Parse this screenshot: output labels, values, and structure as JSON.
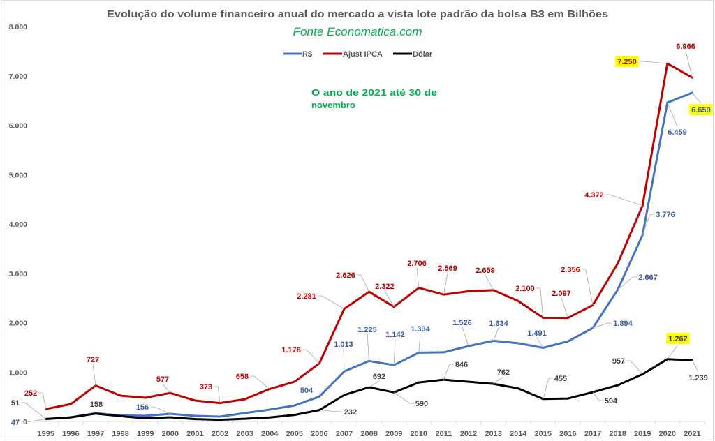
{
  "chart_data": {
    "type": "line",
    "title": "Evolução do volume financeiro anual do mercado a vista lote padrão da bolsa B3 em Bilhões",
    "subtitle": "Fonte Economatica.com",
    "annotation": [
      "O ano de 2021 até 30 de",
      "novembro"
    ],
    "xlabel": "",
    "ylabel": "",
    "categories": [
      "1995",
      "1996",
      "1997",
      "1998",
      "1999",
      "2000",
      "2001",
      "2002",
      "2003",
      "2004",
      "2005",
      "2006",
      "2007",
      "2008",
      "2009",
      "2010",
      "2011",
      "2012",
      "2013",
      "2014",
      "2015",
      "2016",
      "2017",
      "2018",
      "2019",
      "2020",
      "2021"
    ],
    "ylim": [
      0,
      8000
    ],
    "yticks": [
      0,
      1000,
      2000,
      3000,
      4000,
      5000,
      6000,
      7000,
      8000
    ],
    "ytick_labels": [
      "0",
      "1.000",
      "2.000",
      "3.000",
      "4.000",
      "5.000",
      "6.000",
      "7.000",
      "8.000"
    ],
    "grid": false,
    "legend": {
      "position": "top-center",
      "entries": [
        "R$",
        "Ajust IPCA",
        "Dólar"
      ]
    },
    "highlight_color": "#FFFF00",
    "series": [
      {
        "name": "R$",
        "color": "#4472C4",
        "label_color": "#3A5BA0",
        "values": [
          47,
          85,
          168,
          125,
          115,
          156,
          113,
          99,
          169,
          240,
          324,
          504,
          1013,
          1225,
          1142,
          1394,
          1400,
          1526,
          1634,
          1585,
          1491,
          1622,
          1894,
          2667,
          3776,
          6459,
          6659
        ],
        "data_labels": [
          "47",
          null,
          null,
          null,
          null,
          "156",
          null,
          null,
          null,
          null,
          null,
          "504",
          "1.013",
          "1.225",
          "1.142",
          "1.394",
          null,
          "1.526",
          "1.634",
          null,
          "1.491",
          null,
          "1.894",
          "2.667",
          "3.776",
          "6.459",
          "6.659"
        ],
        "highlighted_labels": [
          "2021"
        ]
      },
      {
        "name": "Ajust IPCA",
        "color": "#C00000",
        "label_color": "#C00000",
        "values": [
          252,
          353,
          727,
          523,
          480,
          577,
          424,
          373,
          451,
          658,
          804,
          1178,
          2281,
          2626,
          2322,
          2706,
          2569,
          2637,
          2659,
          2440,
          2100,
          2097,
          2356,
          3200,
          4372,
          7250,
          6966
        ],
        "data_labels": [
          "252",
          null,
          "727",
          null,
          null,
          "577",
          null,
          "373",
          null,
          "658",
          null,
          "1.178",
          "2.281",
          "2.626",
          "2.322",
          "2.706",
          "2.569",
          null,
          "2.659",
          null,
          "2.100",
          "2.097",
          "2.356",
          null,
          "4.372",
          "7.250",
          "6.966"
        ],
        "highlighted_labels": [
          "2020"
        ]
      },
      {
        "name": "Dólar",
        "color": "#000000",
        "label_color": "#404040",
        "values": [
          51,
          83,
          158,
          108,
          63,
          85,
          48,
          34,
          55,
          82,
          133,
          232,
          536,
          692,
          590,
          790,
          846,
          804,
          762,
          670,
          455,
          465,
          594,
          733,
          957,
          1262,
          1239
        ],
        "data_labels": [
          "51",
          null,
          "158",
          null,
          null,
          null,
          null,
          null,
          null,
          null,
          null,
          "232",
          null,
          "692",
          "590",
          null,
          "846",
          null,
          "762",
          null,
          "455",
          null,
          "594",
          null,
          "957",
          "1.262",
          "1.239"
        ],
        "highlighted_labels": [
          "2020"
        ]
      }
    ]
  }
}
